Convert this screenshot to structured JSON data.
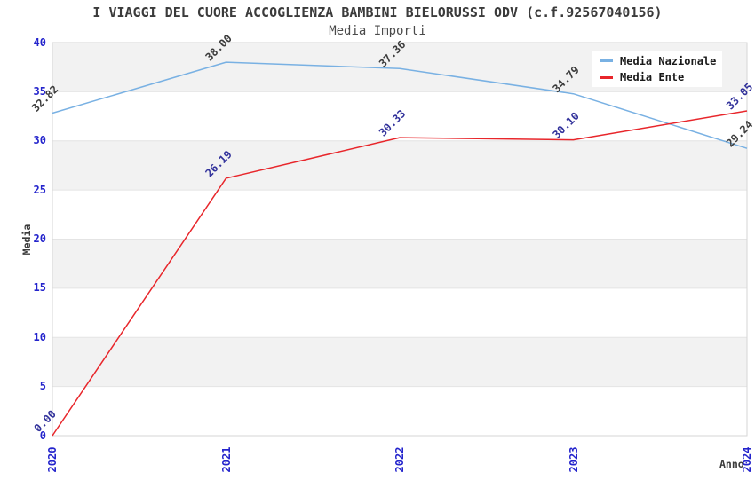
{
  "chart_data": {
    "type": "line",
    "title": "I VIAGGI DEL CUORE ACCOGLIENZA BAMBINI BIELORUSSI ODV (c.f.92567040156)",
    "subtitle": "Media Importi",
    "xlabel": "Anno",
    "ylabel": "Media",
    "categories": [
      "2020",
      "2021",
      "2022",
      "2023",
      "2024"
    ],
    "ylim": [
      0,
      40
    ],
    "yticks": [
      0,
      5,
      10,
      15,
      20,
      25,
      30,
      35,
      40
    ],
    "grid": "alternating-horizontal-bands",
    "legend_position": "top-right-inside",
    "series": [
      {
        "name": "Media Nazionale",
        "color": "#79b1e3",
        "label_color": "#3c3c3c",
        "values": [
          32.82,
          38.0,
          37.36,
          34.79,
          29.24
        ],
        "point_labels": [
          "32.82",
          "38.00",
          "37.36",
          "34.79",
          "29.24"
        ]
      },
      {
        "name": "Media Ente",
        "color": "#e8262b",
        "label_color": "#32329b",
        "values": [
          0.0,
          26.19,
          30.33,
          30.1,
          33.05
        ],
        "point_labels": [
          "0.00",
          "26.19",
          "30.33",
          "30.10",
          "33.05"
        ]
      }
    ],
    "colors": {
      "tick_label": "#2424cc",
      "band": "#f2f2f2",
      "gridline": "#e4e4e4",
      "plot_border": "#d6d6d6",
      "title_text": "#3b3b3b",
      "background": "#ffffff"
    }
  }
}
